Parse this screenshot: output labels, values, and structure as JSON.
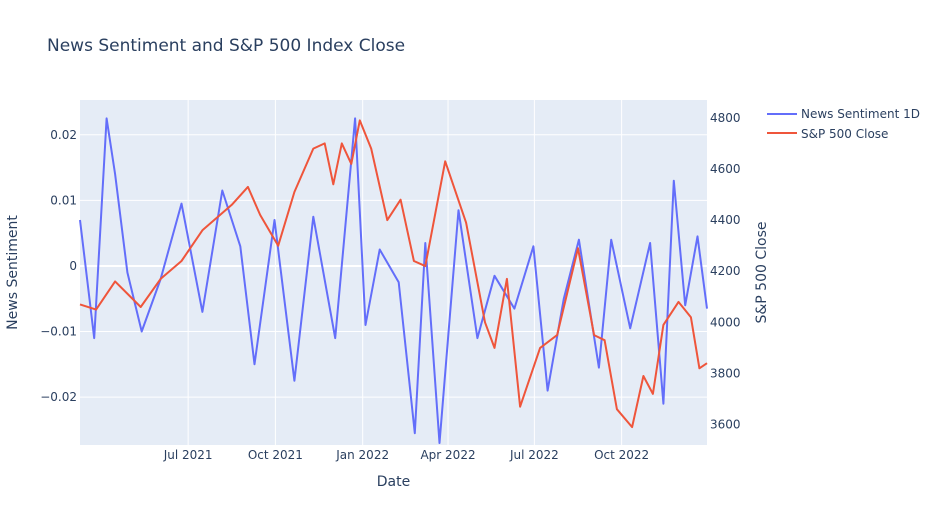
{
  "chart_data": {
    "type": "line",
    "title": "News Sentiment and S&P 500 Index Close",
    "xlabel": "Date",
    "ylabel": "News Sentiment",
    "y2label": "S&P 500 Close",
    "x_range": [
      "2021-03-09",
      "2022-12-30"
    ],
    "x_tick_values": [
      "2021-07-01",
      "2021-10-01",
      "2022-01-01",
      "2022-04-01",
      "2022-07-01",
      "2022-10-01"
    ],
    "x_tick_labels": [
      "Jul 2021",
      "Oct 2021",
      "Jan 2022",
      "Apr 2022",
      "Jul 2022",
      "Oct 2022"
    ],
    "ylim": [
      -0.0273,
      0.0253
    ],
    "y_ticks": [
      0.02,
      0.01,
      0,
      -0.01,
      -0.02
    ],
    "y_tick_labels": [
      "0.02",
      "0.01",
      "0",
      "−0.01",
      "−0.02"
    ],
    "y2lim": [
      3520,
      4870
    ],
    "y2_ticks": [
      4800,
      4600,
      4400,
      4200,
      4000,
      3800,
      3600
    ],
    "y2_tick_labels": [
      "4800",
      "4600",
      "4400",
      "4200",
      "4000",
      "3800",
      "3600"
    ],
    "grid": true,
    "legend_position": "top-right",
    "series": [
      {
        "name": "News Sentiment 1D",
        "axis": "y",
        "color": "#636efa",
        "x": [
          "2021-03-09",
          "2021-03-24",
          "2021-04-06",
          "2021-04-15",
          "2021-04-28",
          "2021-05-13",
          "2021-06-02",
          "2021-06-24",
          "2021-07-16",
          "2021-08-06",
          "2021-08-25",
          "2021-09-09",
          "2021-09-30",
          "2021-10-21",
          "2021-11-10",
          "2021-12-03",
          "2021-12-24",
          "2022-01-04",
          "2022-01-19",
          "2022-02-08",
          "2022-02-25",
          "2022-03-08",
          "2022-03-23",
          "2022-04-12",
          "2022-05-02",
          "2022-05-20",
          "2022-06-10",
          "2022-06-30",
          "2022-07-15",
          "2022-08-01",
          "2022-08-17",
          "2022-09-07",
          "2022-09-20",
          "2022-10-10",
          "2022-10-31",
          "2022-11-14",
          "2022-11-25",
          "2022-12-07",
          "2022-12-20",
          "2022-12-30"
        ],
        "values": [
          0.007,
          -0.011,
          0.0225,
          0.014,
          -0.001,
          -0.01,
          -0.002,
          0.0095,
          -0.007,
          0.0115,
          0.003,
          -0.015,
          0.007,
          -0.0175,
          0.0075,
          -0.011,
          0.0225,
          -0.009,
          0.0025,
          -0.0025,
          -0.0255,
          0.0035,
          -0.027,
          0.0085,
          -0.011,
          -0.0015,
          -0.0065,
          0.003,
          -0.019,
          -0.005,
          0.004,
          -0.0155,
          0.004,
          -0.0095,
          0.0035,
          -0.021,
          0.013,
          -0.006,
          0.0045,
          -0.0065
        ]
      },
      {
        "name": "S&P 500 Close",
        "axis": "y2",
        "color": "#ef553b",
        "x": [
          "2021-03-09",
          "2021-03-26",
          "2021-04-15",
          "2021-05-12",
          "2021-06-02",
          "2021-06-24",
          "2021-07-16",
          "2021-08-16",
          "2021-09-02",
          "2021-09-15",
          "2021-10-04",
          "2021-10-21",
          "2021-11-10",
          "2021-11-22",
          "2021-12-01",
          "2021-12-10",
          "2021-12-20",
          "2021-12-29",
          "2022-01-10",
          "2022-01-27",
          "2022-02-10",
          "2022-02-24",
          "2022-03-08",
          "2022-03-29",
          "2022-04-20",
          "2022-05-10",
          "2022-05-20",
          "2022-06-02",
          "2022-06-16",
          "2022-07-07",
          "2022-07-25",
          "2022-08-16",
          "2022-09-02",
          "2022-09-13",
          "2022-09-26",
          "2022-10-12",
          "2022-10-24",
          "2022-11-03",
          "2022-11-14",
          "2022-11-30",
          "2022-12-13",
          "2022-12-22",
          "2022-12-30"
        ],
        "values": [
          4070,
          4050,
          4160,
          4060,
          4170,
          4240,
          4360,
          4460,
          4530,
          4420,
          4300,
          4510,
          4680,
          4700,
          4540,
          4700,
          4620,
          4790,
          4680,
          4400,
          4480,
          4240,
          4220,
          4630,
          4390,
          4000,
          3900,
          4170,
          3670,
          3900,
          3950,
          4290,
          3950,
          3930,
          3660,
          3590,
          3790,
          3720,
          3990,
          4080,
          4020,
          3820,
          3840
        ]
      }
    ]
  }
}
